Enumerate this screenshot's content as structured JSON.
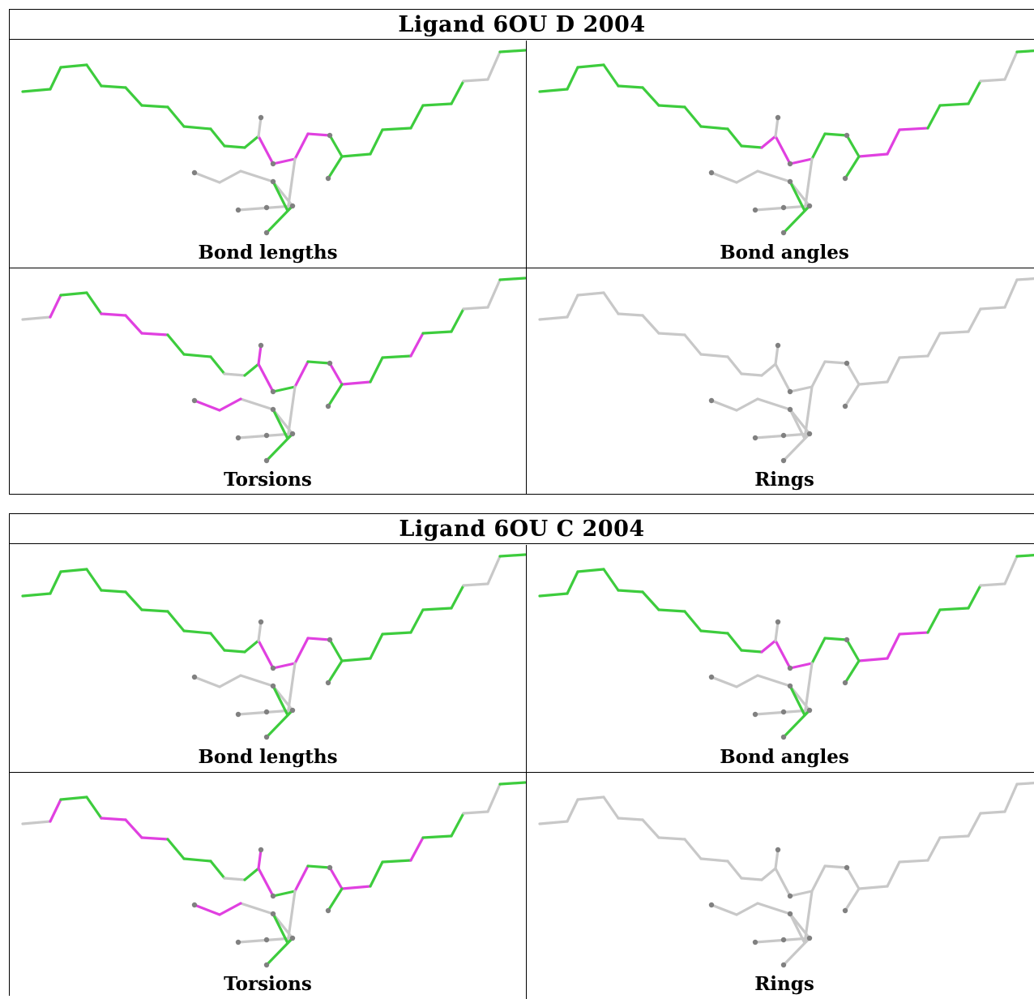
{
  "blocks": [
    {
      "title": "Ligand 6OU D 2004",
      "panels": [
        {
          "caption": "Bond lengths",
          "pink": [
            12,
            13,
            14,
            15
          ],
          "gray": [
            23,
            24,
            26,
            27,
            29,
            30,
            31,
            32,
            33
          ]
        },
        {
          "caption": "Bond angles",
          "pink": [
            11,
            12,
            13,
            17,
            18,
            19
          ],
          "gray": [
            23,
            24,
            26,
            27,
            29,
            30,
            31,
            32,
            33
          ]
        },
        {
          "caption": "Torsions",
          "pink": [
            1,
            4,
            5,
            6,
            12,
            14,
            16,
            17,
            20,
            26,
            31,
            32
          ],
          "gray": [
            0,
            10,
            23,
            24,
            27,
            29,
            30,
            33
          ]
        },
        {
          "caption": "Rings",
          "allGray": true
        }
      ]
    },
    {
      "title": "Ligand 6OU C 2004",
      "panels": [
        {
          "caption": "Bond lengths",
          "pink": [
            12,
            13,
            14,
            15
          ],
          "gray": [
            23,
            24,
            26,
            27,
            29,
            30,
            31,
            32,
            33
          ]
        },
        {
          "caption": "Bond angles",
          "pink": [
            11,
            12,
            13,
            17,
            18,
            19
          ],
          "gray": [
            23,
            24,
            26,
            27,
            29,
            30,
            31,
            32,
            33
          ]
        },
        {
          "caption": "Torsions",
          "pink": [
            1,
            4,
            5,
            6,
            12,
            14,
            16,
            17,
            20,
            26,
            31,
            32
          ],
          "gray": [
            0,
            10,
            23,
            24,
            27,
            29,
            30,
            33
          ]
        },
        {
          "caption": "Rings",
          "allGray": true
        }
      ]
    }
  ],
  "colors": {
    "green": "#3dcc3d",
    "pink": "#e040e0",
    "gray": "#c8c8c8",
    "atom": "#808080"
  }
}
